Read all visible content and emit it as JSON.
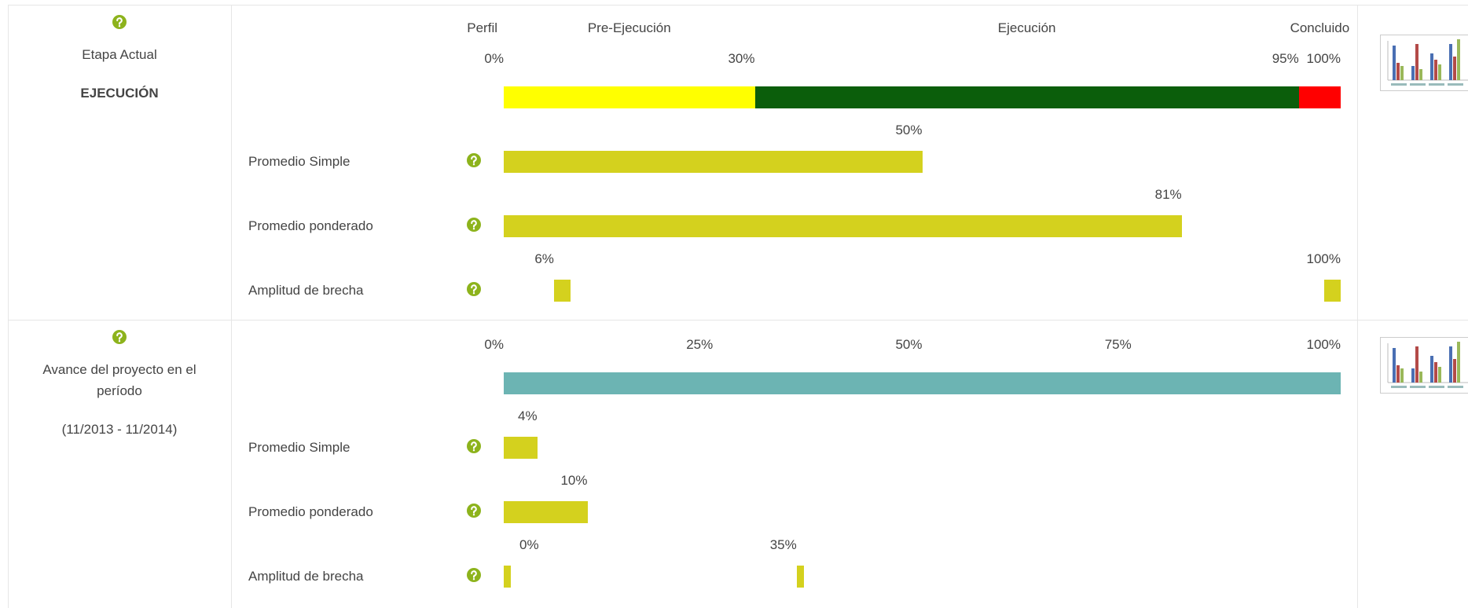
{
  "metric_color": "#d4d11e",
  "rows": [
    {
      "title": "Etapa Actual",
      "subtitle": "EJECUCIÓN",
      "xlim": [
        0,
        100
      ],
      "start_label": "Perfil",
      "ticks": [
        {
          "value": 0,
          "label": "0%"
        },
        {
          "value": 30,
          "label": "30%"
        },
        {
          "value": 95,
          "label": "95%"
        },
        {
          "value": 100,
          "label": "100%"
        }
      ],
      "stages": [
        {
          "name": "Pre-Ejecución",
          "color": "#ffff00",
          "value": 30
        },
        {
          "name": "Ejecución",
          "color": "#0b5e0b",
          "value": 65
        },
        {
          "name": "Concluido",
          "color": "#ff0000",
          "value": 5
        }
      ],
      "metrics": [
        {
          "label": "Promedio Simple",
          "kind": "bar",
          "values": [
            50
          ],
          "value_labels": [
            "50%"
          ]
        },
        {
          "label": "Promedio ponderado",
          "kind": "bar",
          "values": [
            81
          ],
          "value_labels": [
            "81%"
          ]
        },
        {
          "label": "Amplitud de brecha",
          "kind": "range",
          "values": [
            6,
            100
          ],
          "value_labels": [
            "6%",
            "100%"
          ]
        }
      ]
    },
    {
      "title": "Avance del proyecto en el período",
      "subtitle": "(11/2013 - 11/2014)",
      "xlim": [
        0,
        100
      ],
      "ticks": [
        {
          "value": 0,
          "label": "0%"
        },
        {
          "value": 25,
          "label": "25%"
        },
        {
          "value": 50,
          "label": "50%"
        },
        {
          "value": 75,
          "label": "75%"
        },
        {
          "value": 100,
          "label": "100%"
        }
      ],
      "stages": [
        {
          "color": "#6cb4b3",
          "value": 100
        }
      ],
      "metrics": [
        {
          "label": "Promedio Simple",
          "kind": "bar",
          "values": [
            4
          ],
          "value_labels": [
            "4%"
          ]
        },
        {
          "label": "Promedio ponderado",
          "kind": "bar",
          "values": [
            10
          ],
          "value_labels": [
            "10%"
          ]
        },
        {
          "label": "Amplitud de brecha",
          "kind": "range",
          "values": [
            0,
            35
          ],
          "value_labels": [
            "0%",
            "35%"
          ]
        }
      ]
    }
  ]
}
